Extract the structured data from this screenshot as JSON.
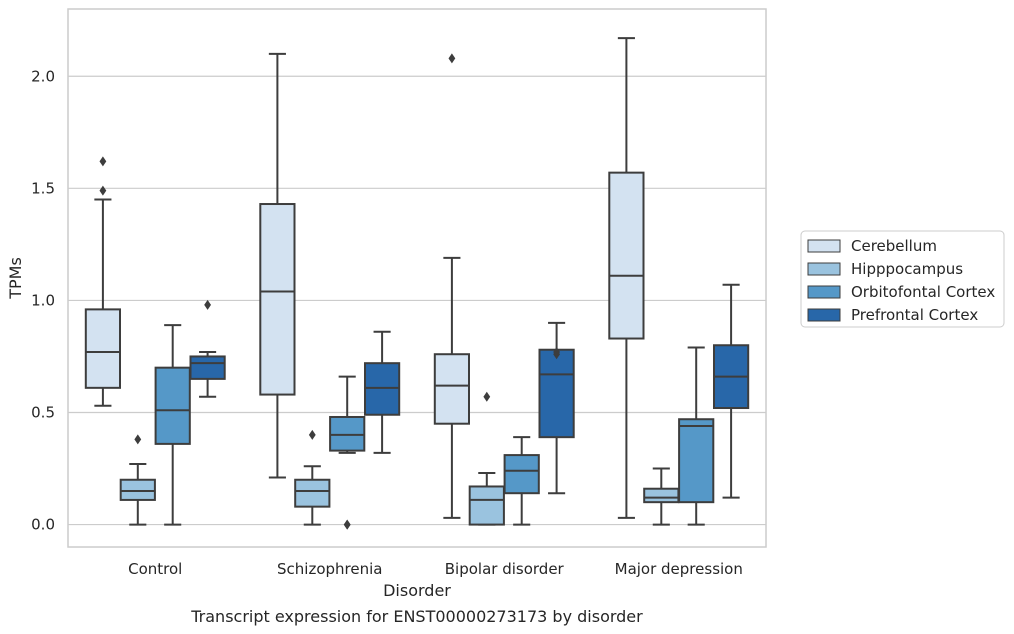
{
  "chart_data": {
    "type": "box",
    "title": "",
    "caption": "Transcript expression for ENST00000273173 by disorder",
    "xlabel": "Disorder",
    "ylabel": "TPMs",
    "ylim": [
      -0.1,
      2.3
    ],
    "yticks": [
      "0.0",
      "0.5",
      "1.0",
      "1.5",
      "2.0"
    ],
    "grid": "horizontal",
    "legend_position": "right",
    "categories": [
      "Control",
      "Schizophrenia",
      "Bipolar disorder",
      "Major depression"
    ],
    "series": [
      {
        "name": "Cerebellum",
        "color": "#d3e2f1",
        "boxes": [
          {
            "whislo": 0.53,
            "q1": 0.61,
            "med": 0.77,
            "q3": 0.96,
            "whishi": 1.45,
            "fliers": [
              1.49,
              1.62
            ]
          },
          {
            "whislo": 0.21,
            "q1": 0.58,
            "med": 1.04,
            "q3": 1.43,
            "whishi": 2.1,
            "fliers": []
          },
          {
            "whislo": 0.03,
            "q1": 0.45,
            "med": 0.62,
            "q3": 0.76,
            "whishi": 1.19,
            "fliers": [
              2.08
            ]
          },
          {
            "whislo": 0.03,
            "q1": 0.83,
            "med": 1.11,
            "q3": 1.57,
            "whishi": 2.17,
            "fliers": []
          }
        ]
      },
      {
        "name": "Hipppocampus",
        "color": "#9ac3df",
        "boxes": [
          {
            "whislo": 0.0,
            "q1": 0.11,
            "med": 0.15,
            "q3": 0.2,
            "whishi": 0.27,
            "fliers": [
              0.38
            ]
          },
          {
            "whislo": 0.0,
            "q1": 0.08,
            "med": 0.15,
            "q3": 0.2,
            "whishi": 0.26,
            "fliers": [
              0.4
            ]
          },
          {
            "whislo": 0.0,
            "q1": 0.0,
            "med": 0.11,
            "q3": 0.17,
            "whishi": 0.23,
            "fliers": [
              0.57
            ]
          },
          {
            "whislo": 0.0,
            "q1": 0.1,
            "med": 0.12,
            "q3": 0.16,
            "whishi": 0.25,
            "fliers": []
          }
        ]
      },
      {
        "name": "Orbitofontal Cortex",
        "color": "#5598c8",
        "boxes": [
          {
            "whislo": 0.0,
            "q1": 0.36,
            "med": 0.51,
            "q3": 0.7,
            "whishi": 0.89,
            "fliers": []
          },
          {
            "whislo": 0.32,
            "q1": 0.33,
            "med": 0.4,
            "q3": 0.48,
            "whishi": 0.66,
            "fliers": [
              0.0,
              0.0
            ]
          },
          {
            "whislo": 0.0,
            "q1": 0.14,
            "med": 0.24,
            "q3": 0.31,
            "whishi": 0.39,
            "fliers": []
          },
          {
            "whislo": 0.0,
            "q1": 0.1,
            "med": 0.44,
            "q3": 0.47,
            "whishi": 0.79,
            "fliers": []
          }
        ]
      },
      {
        "name": "Prefrontal Cortex",
        "color": "#2867a9",
        "boxes": [
          {
            "whislo": 0.57,
            "q1": 0.65,
            "med": 0.72,
            "q3": 0.75,
            "whishi": 0.77,
            "fliers": [
              0.98
            ]
          },
          {
            "whislo": 0.32,
            "q1": 0.49,
            "med": 0.61,
            "q3": 0.72,
            "whishi": 0.86,
            "fliers": []
          },
          {
            "whislo": 0.14,
            "q1": 0.39,
            "med": 0.67,
            "q3": 0.78,
            "whishi": 0.9,
            "fliers": [
              0.76,
              0.77
            ]
          },
          {
            "whislo": 0.12,
            "q1": 0.52,
            "med": 0.66,
            "q3": 0.8,
            "whishi": 1.07,
            "fliers": []
          }
        ]
      }
    ]
  }
}
